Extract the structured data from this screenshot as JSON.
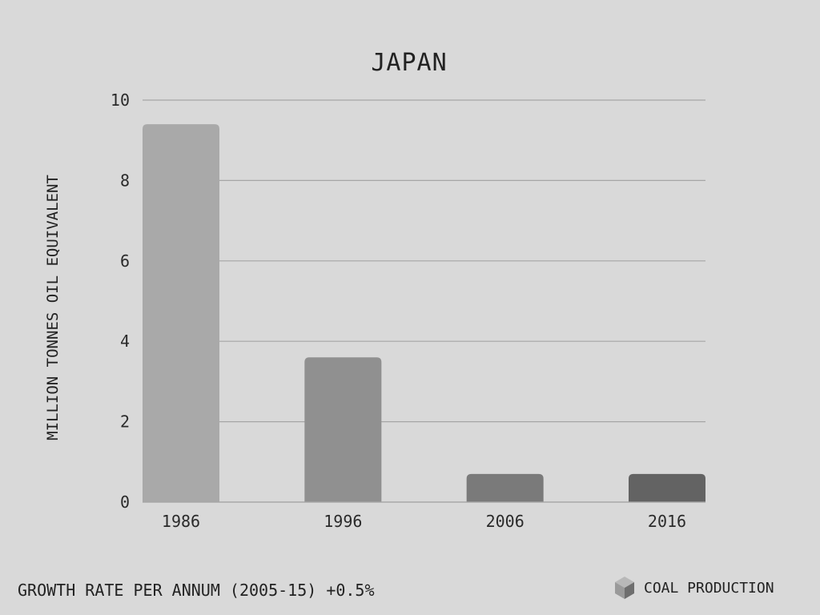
{
  "chart_data": {
    "type": "bar",
    "title": "JAPAN",
    "ylabel": "MILLION TONNES OIL EQUIVALENT",
    "xlabel": "",
    "categories": [
      "1986",
      "1996",
      "2006",
      "2016"
    ],
    "values": [
      9.4,
      3.6,
      0.7,
      0.7
    ],
    "bar_colors": [
      "#a9a9a9",
      "#909090",
      "#7a7a7a",
      "#636363"
    ],
    "ylim": [
      0,
      10
    ],
    "yticks": [
      "0",
      "2",
      "4",
      "6",
      "8",
      "10"
    ],
    "grid": true
  },
  "footer": {
    "growth_text": "GROWTH RATE PER ANNUM (2005-15) +0.5%"
  },
  "legend": {
    "label": "COAL PRODUCTION",
    "icon": "cube-icon"
  },
  "colors": {
    "background": "#d9d9d9",
    "gridline": "#a6a6a6",
    "text": "#222222"
  }
}
